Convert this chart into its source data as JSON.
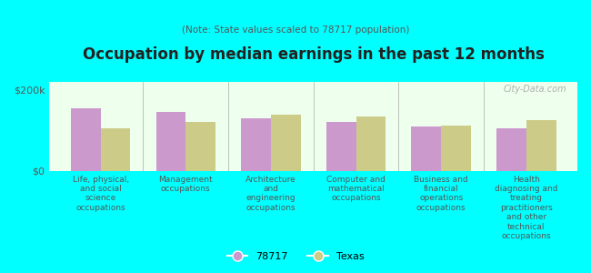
{
  "title": "Occupation by median earnings in the past 12 months",
  "subtitle": "(Note: State values scaled to 78717 population)",
  "categories": [
    "Life, physical,\nand social\nscience\noccupations",
    "Management\noccupations",
    "Architecture\nand\nengineering\noccupations",
    "Computer and\nmathematical\noccupations",
    "Business and\nfinancial\noperations\noccupations",
    "Health\ndiagnosing and\ntreating\npractitioners\nand other\ntechnical\noccupations"
  ],
  "values_78717": [
    155000,
    145000,
    130000,
    120000,
    110000,
    105000
  ],
  "values_texas": [
    105000,
    120000,
    140000,
    135000,
    112000,
    125000
  ],
  "color_78717": "#cc99cc",
  "color_texas": "#cccc88",
  "background_plot": "#eeffee",
  "background_fig": "#00ffff",
  "ylim": [
    0,
    220000
  ],
  "yticks": [
    0,
    200000
  ],
  "yticklabels": [
    "$0",
    "$200k"
  ],
  "legend_78717": "78717",
  "legend_texas": "Texas",
  "watermark": "City-Data.com"
}
